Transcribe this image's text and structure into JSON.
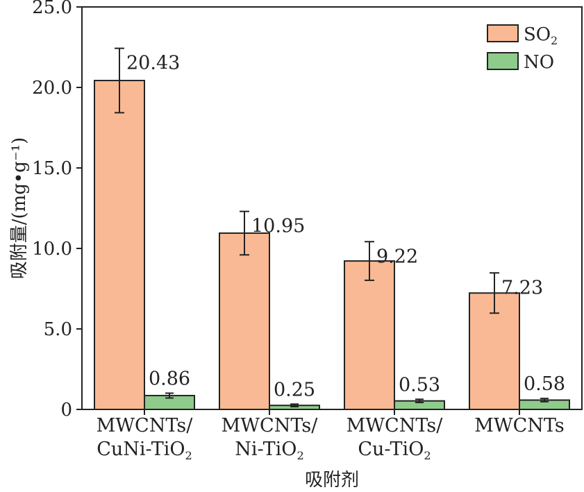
{
  "chart_data": {
    "type": "bar",
    "categories": [
      [
        "MWCNTs/",
        "CuNi-TiO₂"
      ],
      [
        "MWCNTs/",
        "Ni-TiO₂"
      ],
      [
        "MWCNTs/",
        "Cu-TiO₂"
      ],
      [
        "MWCNTs"
      ]
    ],
    "series": [
      {
        "name": "SO₂",
        "color": "#F9B994",
        "values": [
          20.43,
          10.95,
          9.22,
          7.23
        ],
        "errors": [
          2.0,
          1.35,
          1.2,
          1.25
        ],
        "labels": [
          "20.43",
          "10.95",
          "9.22",
          "7.23"
        ]
      },
      {
        "name": "NO",
        "color": "#8FCB8B",
        "values": [
          0.86,
          0.25,
          0.53,
          0.58
        ],
        "errors": [
          0.15,
          0.08,
          0.1,
          0.1
        ],
        "labels": [
          "0.86",
          "0.25",
          "0.53",
          "0.58"
        ]
      }
    ],
    "ylim": [
      0,
      25
    ],
    "yticks": [
      0,
      5,
      10,
      15,
      20,
      25
    ],
    "ytick_labels": [
      "0",
      "5.0",
      "10.0",
      "15.0",
      "20.0",
      "25.0"
    ],
    "ylabel": "吸附量/(mg•g⁻¹)",
    "xlabel": "吸附剂",
    "legend_position": "top-right",
    "grid": false
  }
}
